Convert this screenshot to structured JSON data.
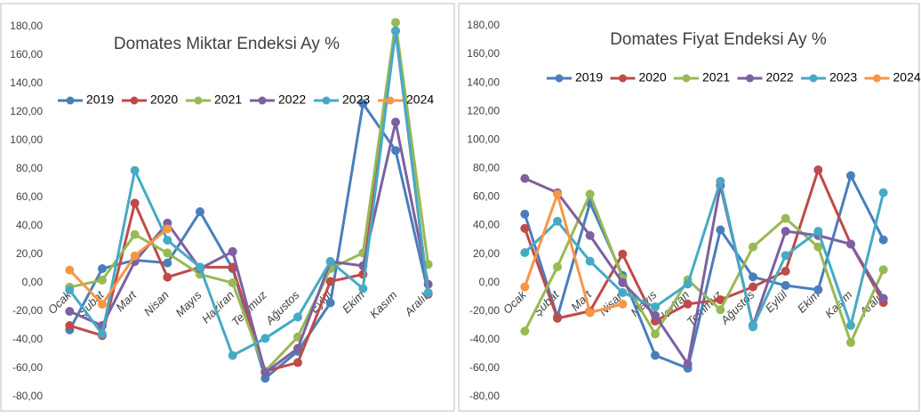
{
  "chart_data": [
    {
      "type": "line",
      "title": "Domates Miktar Endeksi Ay  %",
      "categories": [
        "Ocak",
        "Şubat",
        "Mart",
        "Nisan",
        "Mayıs",
        "Haziran",
        "Temmuz",
        "Ağustos",
        "Eylül",
        "Ekim",
        "Kasım",
        "Aralık"
      ],
      "series": [
        {
          "name": "2019",
          "color": "#4a7ebb",
          "values": [
            -33,
            10,
            16,
            14,
            50,
            10,
            -67,
            -48,
            -14,
            126,
            93,
            -7
          ]
        },
        {
          "name": "2020",
          "color": "#be4b48",
          "values": [
            -30,
            -37,
            56,
            4,
            11,
            11,
            -62,
            -56,
            1,
            6,
            177,
            -8
          ]
        },
        {
          "name": "2021",
          "color": "#98b954",
          "values": [
            -3,
            2,
            34,
            21,
            6,
            0,
            -62,
            -38,
            10,
            21,
            183,
            13
          ]
        },
        {
          "name": "2022",
          "color": "#7d60a0",
          "values": [
            -20,
            -30,
            15,
            42,
            10,
            22,
            -63,
            -46,
            15,
            12,
            113,
            -1
          ]
        },
        {
          "name": "2023",
          "color": "#46aac5",
          "values": [
            -5,
            -36,
            79,
            30,
            11,
            -51,
            -39,
            -24,
            15,
            -4,
            177,
            -7
          ]
        },
        {
          "name": "2024",
          "color": "#f79646",
          "values": [
            9,
            -15,
            19,
            38,
            null,
            null,
            null,
            null,
            null,
            null,
            null,
            null
          ]
        }
      ],
      "ylim": [
        -80,
        180
      ],
      "yticks": [
        {
          "value": -80,
          "label": "-80,00"
        },
        {
          "value": -60,
          "label": "-60,00"
        },
        {
          "value": -40,
          "label": "-40,00"
        },
        {
          "value": -20,
          "label": "-20,00"
        },
        {
          "value": 0,
          "label": "0,00"
        },
        {
          "value": 20,
          "label": "20,00"
        },
        {
          "value": 40,
          "label": "40,00"
        },
        {
          "value": 60,
          "label": "60,00"
        },
        {
          "value": 80,
          "label": "80,00"
        },
        {
          "value": 100,
          "label": "100,00"
        },
        {
          "value": 120,
          "label": "120,00"
        },
        {
          "value": 140,
          "label": "140,00"
        },
        {
          "value": 160,
          "label": "160,00"
        },
        {
          "value": 180,
          "label": "180,00"
        }
      ],
      "grid": false
    },
    {
      "type": "line",
      "title": "Domates Fiyat Endeksi Ay %",
      "categories": [
        "Ocak",
        "Şubat",
        "Mart",
        "Nisan",
        "Mayıs",
        "Haziran",
        "Temmuz",
        "Ağustos",
        "Eylül",
        "Ekim",
        "Kasım",
        "Aralık"
      ],
      "series": [
        {
          "name": "2019",
          "color": "#4a7ebb",
          "values": [
            48,
            -24,
            56,
            5,
            -51,
            -60,
            37,
            4,
            -2,
            -5,
            75,
            30
          ]
        },
        {
          "name": "2020",
          "color": "#be4b48",
          "values": [
            38,
            -25,
            -20,
            20,
            -27,
            -15,
            -12,
            -3,
            8,
            79,
            27,
            -14
          ]
        },
        {
          "name": "2021",
          "color": "#98b954",
          "values": [
            -34,
            11,
            62,
            3,
            -36,
            2,
            -19,
            25,
            45,
            25,
            -42,
            9
          ]
        },
        {
          "name": "2022",
          "color": "#7d60a0",
          "values": [
            73,
            63,
            33,
            0,
            -23,
            -57,
            68,
            -30,
            36,
            33,
            27,
            -11
          ]
        },
        {
          "name": "2023",
          "color": "#46aac5",
          "values": [
            21,
            43,
            15,
            -7,
            -17,
            -1,
            71,
            -31,
            19,
            36,
            -30,
            63
          ]
        },
        {
          "name": "2024",
          "color": "#f79646",
          "values": [
            -3,
            62,
            -21,
            -15,
            null,
            null,
            null,
            null,
            null,
            null,
            null,
            null
          ]
        }
      ],
      "ylim": [
        -80,
        180
      ],
      "yticks": [
        {
          "value": -80,
          "label": "-80,00"
        },
        {
          "value": -60,
          "label": "-60,00"
        },
        {
          "value": -40,
          "label": "-40,00"
        },
        {
          "value": -20,
          "label": "-20,00"
        },
        {
          "value": 0,
          "label": "0,00"
        },
        {
          "value": 20,
          "label": "20,00"
        },
        {
          "value": 40,
          "label": "40,00"
        },
        {
          "value": 60,
          "label": "60,00"
        },
        {
          "value": 80,
          "label": "80,00"
        },
        {
          "value": 100,
          "label": "100,00"
        },
        {
          "value": 120,
          "label": "120,00"
        },
        {
          "value": 140,
          "label": "140,00"
        },
        {
          "value": 160,
          "label": "160,00"
        },
        {
          "value": 180,
          "label": "180,00"
        }
      ],
      "grid": false
    }
  ]
}
